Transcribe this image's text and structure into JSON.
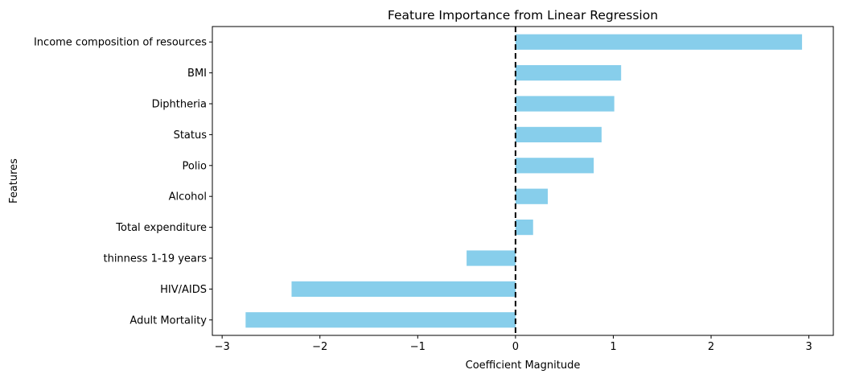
{
  "chart_data": {
    "type": "bar",
    "orientation": "horizontal",
    "title": "Feature Importance from Linear Regression",
    "xlabel": "Coefficient Magnitude",
    "ylabel": "Features",
    "categories": [
      "Income composition of resources",
      "BMI",
      "Diphtheria",
      "Status",
      "Polio",
      "Alcohol",
      "Total expenditure",
      "thinness  1-19 years",
      "HIV/AIDS",
      "Adult Mortality"
    ],
    "values": [
      2.93,
      1.08,
      1.01,
      0.88,
      0.8,
      0.33,
      0.18,
      -0.5,
      -2.29,
      -2.76
    ],
    "xlim": [
      -3.1,
      3.25
    ],
    "xticks": [
      -3,
      -2,
      -1,
      0,
      1,
      2,
      3
    ],
    "xtick_labels": [
      "−3",
      "−2",
      "−1",
      "0",
      "1",
      "2",
      "3"
    ],
    "bar_color": "#87CEEB",
    "reference_line": {
      "x": 0,
      "style": "dashed",
      "color": "#000000"
    },
    "grid": false,
    "legend": "none"
  }
}
